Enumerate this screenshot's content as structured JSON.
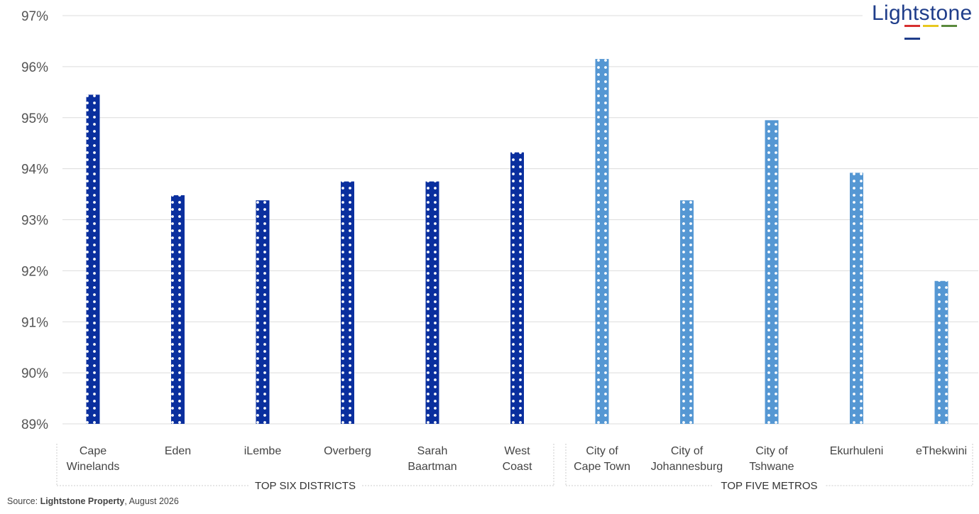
{
  "chart_data": {
    "type": "bar",
    "title": "",
    "xlabel": "",
    "ylabel": "",
    "ylim": [
      89,
      97
    ],
    "y_ticks": [
      "89%",
      "90%",
      "91%",
      "92%",
      "93%",
      "94%",
      "95%",
      "96%",
      "97%"
    ],
    "grid": "horizontal",
    "categories": [
      [
        "Cape",
        "Winelands"
      ],
      [
        "Eden"
      ],
      [
        "iLembe"
      ],
      [
        "Overberg"
      ],
      [
        "Sarah",
        "Baartman"
      ],
      [
        "West",
        "Coast"
      ],
      [
        "City of",
        "Cape Town"
      ],
      [
        "City of",
        "Johannesburg"
      ],
      [
        "City of",
        "Tshwane"
      ],
      [
        "Ekurhuleni"
      ],
      [
        "eThekwini"
      ]
    ],
    "values": [
      95.45,
      93.48,
      93.38,
      93.75,
      93.75,
      94.32,
      96.15,
      93.38,
      94.95,
      93.92,
      91.8
    ],
    "groups": [
      {
        "label": "TOP SIX DISTRICTS",
        "start": 0,
        "end": 5,
        "color": "#0a2f9e"
      },
      {
        "label": "TOP FIVE METROS",
        "start": 6,
        "end": 10,
        "color": "#5597d3"
      }
    ]
  },
  "source": {
    "prefix": "Source: ",
    "name": "Lightstone Property",
    "suffix": ", August 2026"
  },
  "logo": {
    "text": "Lightstone",
    "colors": [
      "#d62f2f",
      "#e8c81f",
      "#5a8a3c",
      "#1f3d8a"
    ]
  }
}
